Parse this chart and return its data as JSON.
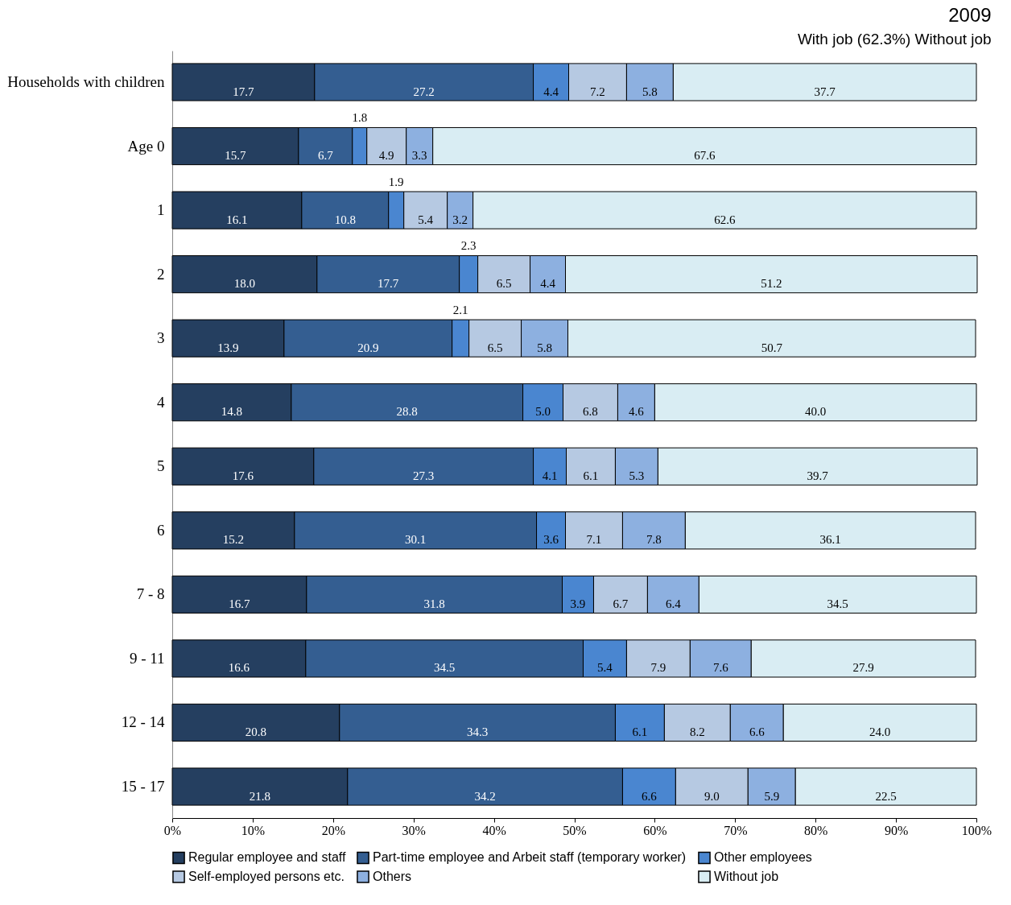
{
  "chart_data": {
    "type": "bar",
    "orientation": "horizontal",
    "stacked": true,
    "title": "2009",
    "annotations": [
      "With job (62.3%)",
      "Without job"
    ],
    "categories": [
      "Households with children",
      "Age 0",
      "1",
      "2",
      "3",
      "4",
      "5",
      "6",
      "7 - 8",
      "9 - 11",
      "12 - 14",
      "15 - 17"
    ],
    "series": [
      {
        "name": "Regular employee and staff",
        "color": "#253f60",
        "values": [
          17.7,
          15.7,
          16.1,
          18.0,
          13.9,
          14.8,
          17.6,
          15.2,
          16.7,
          16.6,
          20.8,
          21.8
        ],
        "value_labels": [
          "17.7",
          "15.7",
          "16.1",
          "18.0",
          "13.9",
          "14.8",
          "17.6",
          "15.2",
          "16.7",
          "16.6",
          "20.8",
          "21.8"
        ]
      },
      {
        "name": "Part-time employee and Arbeit staff (temporary worker)",
        "color": "#345e91",
        "values": [
          27.2,
          6.7,
          10.8,
          17.7,
          20.9,
          28.8,
          27.3,
          30.1,
          31.8,
          34.5,
          34.3,
          34.2
        ],
        "value_labels": [
          "27.2",
          "6.7",
          "10.8",
          "17.7",
          "20.9",
          "28.8",
          "27.3",
          "30.1",
          "31.8",
          "34.5",
          "34.3",
          "34.2"
        ]
      },
      {
        "name": "Other employees",
        "color": "#4a86d0",
        "values": [
          4.4,
          1.8,
          1.9,
          2.3,
          2.1,
          5.0,
          4.1,
          3.6,
          3.9,
          5.4,
          6.1,
          6.6
        ],
        "value_labels": [
          "4.4",
          "1.8",
          "1.9",
          "2.3",
          "2.1",
          "5.0",
          "4.1",
          "3.6",
          "3.9",
          "5.4",
          "6.1",
          "6.6"
        ]
      },
      {
        "name": "Self-employed persons etc.",
        "color": "#b6c9e2",
        "values": [
          7.2,
          4.9,
          5.4,
          6.5,
          6.5,
          6.8,
          6.1,
          7.1,
          6.7,
          7.9,
          8.2,
          9.0
        ],
        "value_labels": [
          "7.2",
          "4.9",
          "5.4",
          "6.5",
          "6.5",
          "6.8",
          "6.1",
          "7.1",
          "6.7",
          "7.9",
          "8.2",
          "9.0"
        ]
      },
      {
        "name": "Others",
        "color": "#8db0e0",
        "values": [
          5.8,
          3.3,
          3.2,
          4.4,
          5.8,
          4.6,
          5.3,
          7.8,
          6.4,
          7.6,
          6.6,
          5.9
        ],
        "value_labels": [
          "5.8",
          "3.3",
          "3.2",
          "4.4",
          "5.8",
          "4.6",
          "5.3",
          "7.8",
          "6.4",
          "7.6",
          "6.6",
          "5.9"
        ]
      },
      {
        "name": "Without job",
        "color": "#d9edf3",
        "values": [
          37.7,
          67.6,
          62.6,
          51.2,
          50.7,
          40.0,
          39.7,
          36.1,
          34.5,
          27.9,
          24.0,
          22.5
        ],
        "value_labels": [
          "37.7",
          "67.6",
          "62.6",
          "51.2",
          "50.7",
          "40.0",
          "39.7",
          "36.1",
          "34.5",
          "27.9",
          "24.0",
          "22.5"
        ]
      }
    ],
    "xlim": [
      0,
      100
    ],
    "xticks": [
      {
        "value": 0,
        "label": "0%"
      },
      {
        "value": 10,
        "label": "10%"
      },
      {
        "value": 20,
        "label": "20%"
      },
      {
        "value": 30,
        "label": "30%"
      },
      {
        "value": 40,
        "label": "40%"
      },
      {
        "value": 50,
        "label": "50%"
      },
      {
        "value": 60,
        "label": "60%"
      },
      {
        "value": 70,
        "label": "70%"
      },
      {
        "value": 80,
        "label": "80%"
      },
      {
        "value": 90,
        "label": "90%"
      },
      {
        "value": 100,
        "label": "100%"
      }
    ],
    "data_labels": true,
    "grid": false,
    "legend": "bottom"
  }
}
